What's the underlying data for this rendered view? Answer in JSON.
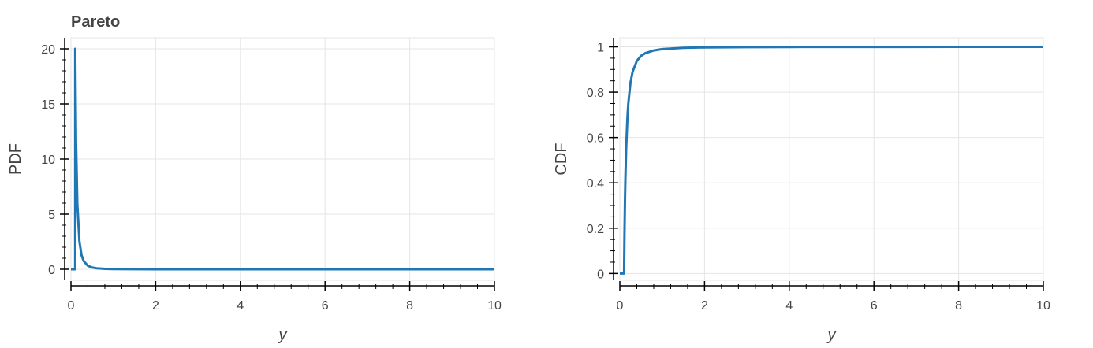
{
  "chart_data": [
    {
      "type": "line",
      "title": "Pareto",
      "xlabel": "y",
      "ylabel": "PDF",
      "xlim": [
        0,
        10
      ],
      "ylim": [
        -1,
        21
      ],
      "grid": true,
      "xticks": [
        0,
        2,
        4,
        6,
        8,
        10
      ],
      "yticks": [
        0,
        5,
        10,
        15,
        20
      ],
      "series": [
        {
          "color": "#1f77b4",
          "x": [
            0,
            0.099,
            0.1,
            0.12,
            0.15,
            0.2,
            0.25,
            0.3,
            0.4,
            0.5,
            0.6,
            0.8,
            1.0,
            1.5,
            2,
            3,
            4,
            6,
            8,
            10
          ],
          "y": [
            0,
            0,
            20,
            11.57,
            5.93,
            2.5,
            1.28,
            0.74,
            0.31,
            0.16,
            0.093,
            0.039,
            0.02,
            0.0059,
            0.0025,
            0.00074,
            0.00031,
            9e-05,
            4e-05,
            2e-05
          ]
        }
      ]
    },
    {
      "type": "line",
      "title": "",
      "xlabel": "y",
      "ylabel": "CDF",
      "xlim": [
        0,
        10
      ],
      "ylim": [
        -0.03,
        1.04
      ],
      "grid": true,
      "xticks": [
        0,
        2,
        4,
        6,
        8,
        10
      ],
      "yticks": [
        0,
        0.2,
        0.4,
        0.6,
        0.8,
        1
      ],
      "series": [
        {
          "color": "#1f77b4",
          "x": [
            0,
            0.099,
            0.1,
            0.11,
            0.12,
            0.13,
            0.15,
            0.18,
            0.2,
            0.25,
            0.3,
            0.4,
            0.5,
            0.6,
            0.8,
            1.0,
            1.5,
            2,
            3,
            4,
            6,
            8,
            10
          ],
          "y": [
            0,
            0,
            0,
            0.174,
            0.306,
            0.408,
            0.556,
            0.691,
            0.75,
            0.84,
            0.889,
            0.9375,
            0.96,
            0.972,
            0.984,
            0.99,
            0.9956,
            0.9975,
            0.9989,
            0.99938,
            0.99972,
            0.99984,
            0.9999
          ]
        }
      ]
    }
  ]
}
